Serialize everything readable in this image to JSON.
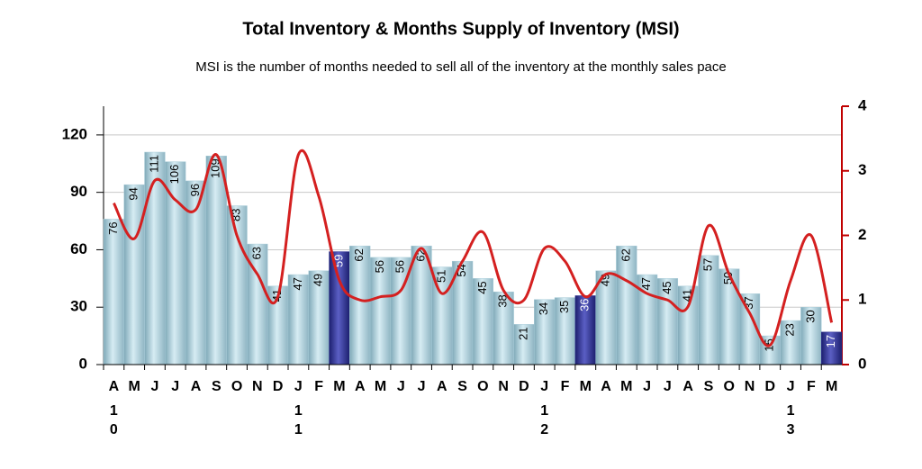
{
  "chart_data": {
    "type": "bar",
    "title": "Total Inventory & Months Supply of Inventory (MSI)",
    "subtitle": "MSI is the number of months needed to sell all of the inventory at the monthly sales pace",
    "categories": [
      "A",
      "M",
      "J",
      "J",
      "A",
      "S",
      "O",
      "N",
      "D",
      "J",
      "F",
      "M",
      "A",
      "M",
      "J",
      "J",
      "A",
      "S",
      "O",
      "N",
      "D",
      "J",
      "F",
      "M",
      "A",
      "M",
      "J",
      "J",
      "A",
      "S",
      "O",
      "N",
      "D",
      "J",
      "F",
      "M"
    ],
    "year_labels": [
      "10",
      null,
      null,
      null,
      null,
      null,
      null,
      null,
      null,
      "11",
      null,
      null,
      null,
      null,
      null,
      null,
      null,
      null,
      null,
      null,
      null,
      "12",
      null,
      null,
      null,
      null,
      null,
      null,
      null,
      null,
      null,
      null,
      null,
      "13",
      null,
      null
    ],
    "series": [
      {
        "type": "bar",
        "color": "#a8ccd8",
        "highlight_color": "#2e3192",
        "highlight": [
          11,
          23,
          35
        ],
        "values": [
          76,
          94,
          111,
          106,
          96,
          109,
          83,
          63,
          41,
          47,
          49,
          59,
          62,
          56,
          56,
          62,
          51,
          54,
          45,
          38,
          21,
          34,
          35,
          36,
          49,
          62,
          47,
          45,
          41,
          57,
          50,
          37,
          15,
          23,
          30,
          17
        ]
      },
      {
        "type": "line",
        "axis": "y2",
        "color": "#d42020",
        "values": [
          2.5,
          1.95,
          2.85,
          2.55,
          2.4,
          3.25,
          2.0,
          1.4,
          1.05,
          3.25,
          2.6,
          1.3,
          1.0,
          1.05,
          1.15,
          1.8,
          1.1,
          1.6,
          2.05,
          1.15,
          1.0,
          1.8,
          1.6,
          1.05,
          1.4,
          1.3,
          1.1,
          1.0,
          0.9,
          2.15,
          1.4,
          0.8,
          0.3,
          1.3,
          2.0,
          0.65
        ]
      }
    ],
    "ylim": [
      0,
      135
    ],
    "yticks": [
      0,
      30,
      60,
      90,
      120
    ],
    "y2lim": [
      0,
      4
    ],
    "y2ticks": [
      0,
      1,
      2,
      3,
      4
    ],
    "grid": true
  }
}
